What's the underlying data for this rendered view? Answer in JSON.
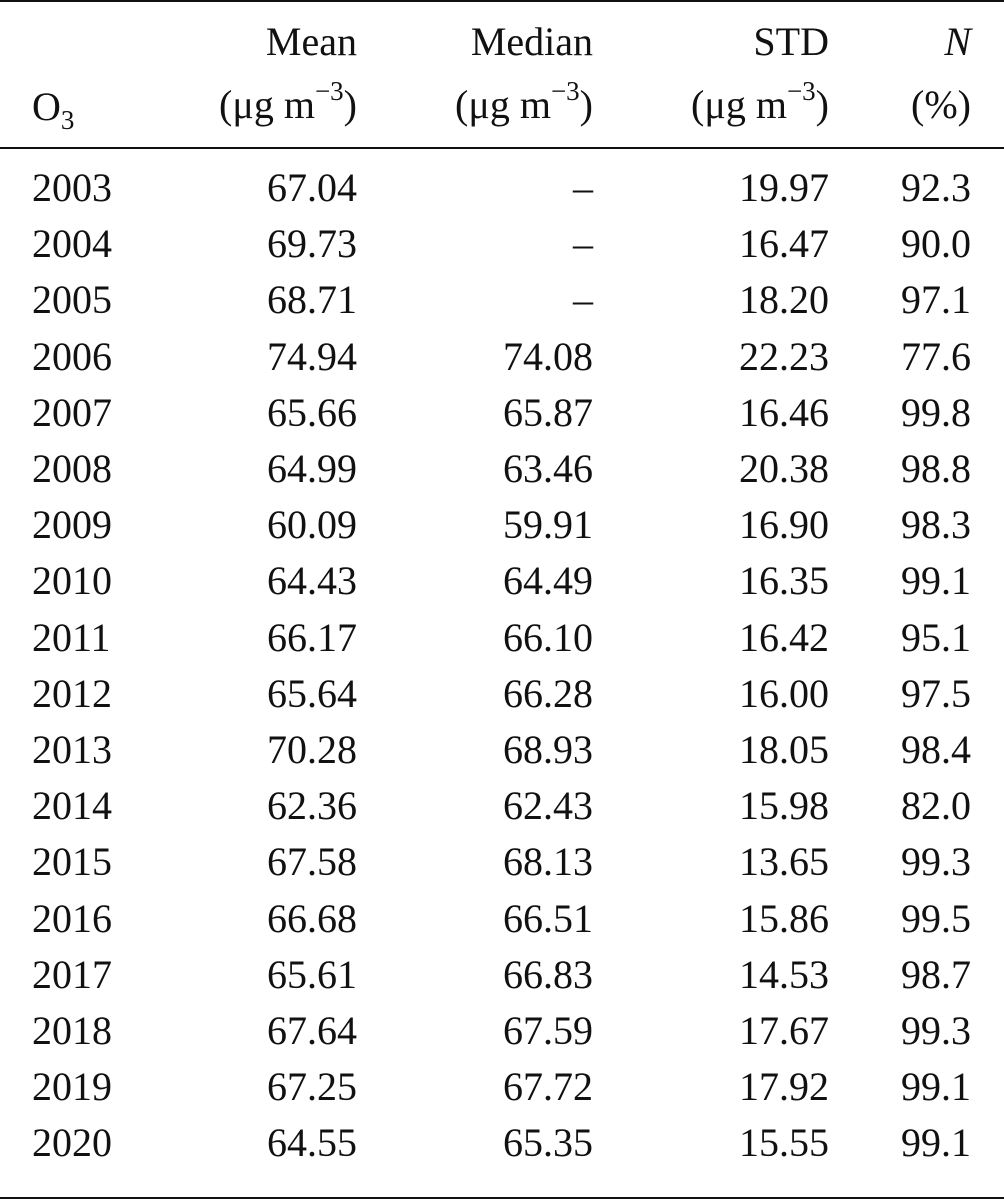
{
  "table": {
    "header": {
      "first": {
        "label": "O",
        "sub": "3"
      },
      "columns": [
        {
          "label": "Mean",
          "unit": "(μg m",
          "sup": "−3",
          "close": ")"
        },
        {
          "label": "Median",
          "unit": "(μg m",
          "sup": "−3",
          "close": ")"
        },
        {
          "label": "STD",
          "unit": "(μg m",
          "sup": "−3",
          "close": ")"
        },
        {
          "label": "N",
          "unit": "(%)"
        }
      ]
    },
    "rows": [
      [
        "2003",
        "67.04",
        "–",
        "19.97",
        "92.3"
      ],
      [
        "2004",
        "69.73",
        "–",
        "16.47",
        "90.0"
      ],
      [
        "2005",
        "68.71",
        "–",
        "18.20",
        "97.1"
      ],
      [
        "2006",
        "74.94",
        "74.08",
        "22.23",
        "77.6"
      ],
      [
        "2007",
        "65.66",
        "65.87",
        "16.46",
        "99.8"
      ],
      [
        "2008",
        "64.99",
        "63.46",
        "20.38",
        "98.8"
      ],
      [
        "2009",
        "60.09",
        "59.91",
        "16.90",
        "98.3"
      ],
      [
        "2010",
        "64.43",
        "64.49",
        "16.35",
        "99.1"
      ],
      [
        "2011",
        "66.17",
        "66.10",
        "16.42",
        "95.1"
      ],
      [
        "2012",
        "65.64",
        "66.28",
        "16.00",
        "97.5"
      ],
      [
        "2013",
        "70.28",
        "68.93",
        "18.05",
        "98.4"
      ],
      [
        "2014",
        "62.36",
        "62.43",
        "15.98",
        "82.0"
      ],
      [
        "2015",
        "67.58",
        "68.13",
        "13.65",
        "99.3"
      ],
      [
        "2016",
        "66.68",
        "66.51",
        "15.86",
        "99.5"
      ],
      [
        "2017",
        "65.61",
        "66.83",
        "14.53",
        "98.7"
      ],
      [
        "2018",
        "67.64",
        "67.59",
        "17.67",
        "99.3"
      ],
      [
        "2019",
        "67.25",
        "67.72",
        "17.92",
        "99.1"
      ],
      [
        "2020",
        "64.55",
        "65.35",
        "15.55",
        "99.1"
      ]
    ]
  }
}
